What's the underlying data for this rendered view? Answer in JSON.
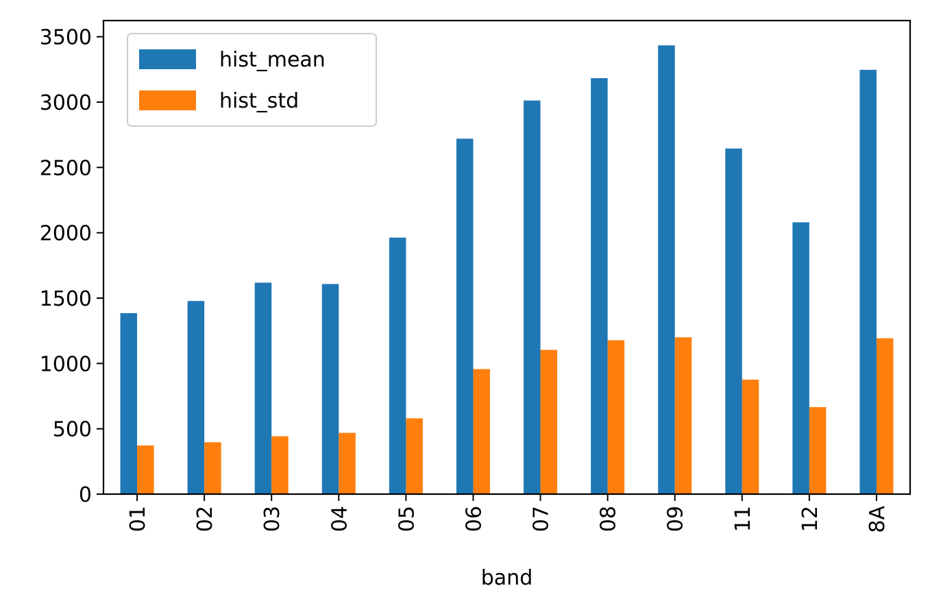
{
  "chart_data": {
    "type": "bar",
    "title": "",
    "xlabel": "band",
    "ylabel": "",
    "categories": [
      "01",
      "02",
      "03",
      "04",
      "05",
      "06",
      "07",
      "08",
      "09",
      "11",
      "12",
      "8A"
    ],
    "series": [
      {
        "name": "hist_mean",
        "color": "#1f77b4",
        "values": [
          1385,
          1478,
          1618,
          1608,
          1963,
          2720,
          3012,
          3183,
          3434,
          2645,
          2080,
          3247
        ]
      },
      {
        "name": "hist_std",
        "color": "#ff7f0e",
        "values": [
          372,
          397,
          443,
          469,
          580,
          957,
          1104,
          1178,
          1200,
          876,
          666,
          1193
        ]
      }
    ],
    "ylim": [
      0,
      3624
    ],
    "yticks": [
      0,
      500,
      1000,
      1500,
      2000,
      2500,
      3000,
      3500
    ],
    "ytick_labels": [
      "0",
      "500",
      "1000",
      "1500",
      "2000",
      "2500",
      "3000",
      "3500"
    ],
    "grid": false,
    "legend_position": "top-left",
    "xtick_rotation": "vertical"
  }
}
